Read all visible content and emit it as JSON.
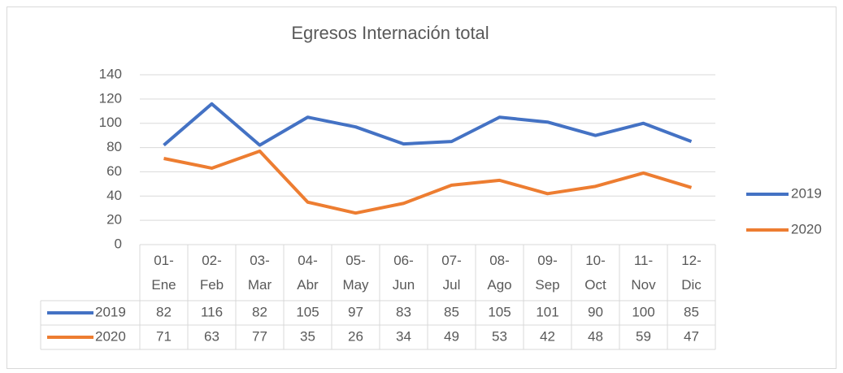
{
  "chart_data": {
    "type": "line",
    "title": "Egresos Internación total",
    "categories": [
      "01-Ene",
      "02-Feb",
      "03-Mar",
      "04-Abr",
      "05-May",
      "06-Jun",
      "07-Jul",
      "08-Ago",
      "09-Sep",
      "10-Oct",
      "11-Nov",
      "12-Dic"
    ],
    "series": [
      {
        "name": "2019",
        "color": "#4472c4",
        "values": [
          82,
          116,
          82,
          105,
          97,
          83,
          85,
          105,
          101,
          90,
          100,
          85
        ]
      },
      {
        "name": "2020",
        "color": "#ed7d31",
        "values": [
          71,
          63,
          77,
          35,
          26,
          34,
          49,
          53,
          42,
          48,
          59,
          47
        ]
      }
    ],
    "ylim": [
      0,
      140
    ],
    "yticks": [
      0,
      20,
      40,
      60,
      80,
      100,
      120,
      140
    ],
    "grid": true,
    "legend": "right",
    "data_table": true
  }
}
